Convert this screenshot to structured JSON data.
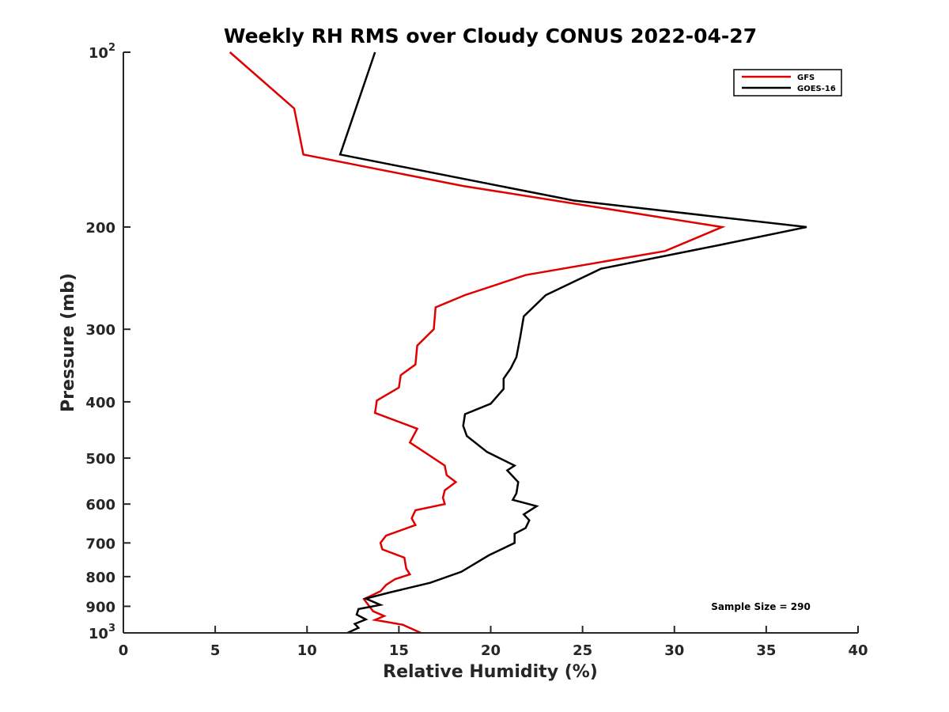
{
  "chart_data": {
    "type": "line",
    "title": "Weekly RH RMS over Cloudy CONUS 2022-04-27",
    "xlabel": "Relative Humidity (%)",
    "ylabel": "Pressure (mb)",
    "xlim": [
      0,
      40
    ],
    "ylim": [
      100,
      1000
    ],
    "y_scale": "log",
    "y_reversed": true,
    "grid": false,
    "legend_position": "top-right",
    "x_ticks": [
      {
        "value": 0,
        "label": "0"
      },
      {
        "value": 5,
        "label": "5"
      },
      {
        "value": 10,
        "label": "10"
      },
      {
        "value": 15,
        "label": "15"
      },
      {
        "value": 20,
        "label": "20"
      },
      {
        "value": 25,
        "label": "25"
      },
      {
        "value": 30,
        "label": "30"
      },
      {
        "value": 35,
        "label": "35"
      },
      {
        "value": 40,
        "label": "40"
      }
    ],
    "y_ticks": [
      {
        "value": 100,
        "base": "10",
        "exp": "2"
      },
      {
        "value": 200,
        "label": "200"
      },
      {
        "value": 300,
        "label": "300"
      },
      {
        "value": 400,
        "label": "400"
      },
      {
        "value": 500,
        "label": "500"
      },
      {
        "value": 600,
        "label": "600"
      },
      {
        "value": 700,
        "label": "700"
      },
      {
        "value": 800,
        "label": "800"
      },
      {
        "value": 900,
        "label": "900"
      },
      {
        "value": 1000,
        "base": "10",
        "exp": "3"
      }
    ],
    "series": [
      {
        "name": "GFS",
        "color": "#e00000",
        "points": [
          [
            5.8,
            100
          ],
          [
            9.3,
            125
          ],
          [
            9.8,
            150
          ],
          [
            18.5,
            170
          ],
          [
            32.6,
            200
          ],
          [
            29.5,
            220
          ],
          [
            21.9,
            242
          ],
          [
            18.6,
            262
          ],
          [
            17.0,
            275
          ],
          [
            16.9,
            300
          ],
          [
            16.0,
            320
          ],
          [
            15.9,
            345
          ],
          [
            15.1,
            360
          ],
          [
            15.0,
            378
          ],
          [
            13.8,
            398
          ],
          [
            13.7,
            418
          ],
          [
            16.0,
            445
          ],
          [
            15.6,
            470
          ],
          [
            17.5,
            515
          ],
          [
            17.6,
            535
          ],
          [
            18.1,
            550
          ],
          [
            17.5,
            568
          ],
          [
            17.4,
            585
          ],
          [
            17.5,
            600
          ],
          [
            15.9,
            615
          ],
          [
            15.7,
            635
          ],
          [
            15.9,
            652
          ],
          [
            14.3,
            680
          ],
          [
            14.0,
            700
          ],
          [
            14.1,
            718
          ],
          [
            15.3,
            742
          ],
          [
            15.4,
            775
          ],
          [
            15.6,
            793
          ],
          [
            14.8,
            808
          ],
          [
            14.3,
            827
          ],
          [
            14.0,
            848
          ],
          [
            13.1,
            875
          ],
          [
            13.6,
            918
          ],
          [
            14.2,
            935
          ],
          [
            13.7,
            950
          ],
          [
            15.2,
            968
          ],
          [
            16.2,
            1000
          ]
        ]
      },
      {
        "name": "GOES-16",
        "color": "#000000",
        "points": [
          [
            13.7,
            100
          ],
          [
            11.8,
            150
          ],
          [
            24.5,
            180
          ],
          [
            37.2,
            200
          ],
          [
            32.4,
            215
          ],
          [
            26.0,
            236
          ],
          [
            23.0,
            262
          ],
          [
            21.8,
            285
          ],
          [
            21.6,
            310
          ],
          [
            21.4,
            335
          ],
          [
            21.1,
            350
          ],
          [
            20.7,
            365
          ],
          [
            20.7,
            380
          ],
          [
            20.0,
            403
          ],
          [
            18.6,
            420
          ],
          [
            18.5,
            440
          ],
          [
            18.7,
            458
          ],
          [
            19.8,
            488
          ],
          [
            21.3,
            515
          ],
          [
            20.9,
            525
          ],
          [
            21.5,
            550
          ],
          [
            21.4,
            575
          ],
          [
            21.2,
            590
          ],
          [
            22.5,
            605
          ],
          [
            21.8,
            625
          ],
          [
            22.1,
            640
          ],
          [
            21.9,
            660
          ],
          [
            21.3,
            675
          ],
          [
            21.3,
            700
          ],
          [
            19.9,
            735
          ],
          [
            18.4,
            785
          ],
          [
            16.7,
            820
          ],
          [
            14.5,
            852
          ],
          [
            13.2,
            873
          ],
          [
            14.0,
            895
          ],
          [
            12.8,
            910
          ],
          [
            12.7,
            930
          ],
          [
            13.2,
            948
          ],
          [
            12.6,
            965
          ],
          [
            12.8,
            980
          ],
          [
            12.2,
            1000
          ]
        ]
      }
    ],
    "annotation": "Sample Size = 290"
  }
}
